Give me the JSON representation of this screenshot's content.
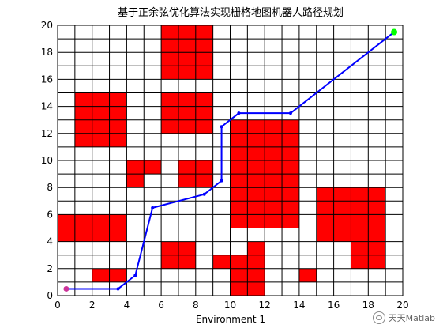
{
  "chart_data": {
    "type": "grid-map-path",
    "title": "基于正余弦优化算法实现栅格地图机器人路径规划",
    "xlabel": "Environment 1",
    "ylabel": "",
    "xlim": [
      0,
      20
    ],
    "ylim": [
      0,
      20
    ],
    "x_ticks": [
      0,
      2,
      4,
      6,
      8,
      10,
      12,
      14,
      16,
      18,
      20
    ],
    "y_ticks": [
      0,
      2,
      4,
      6,
      8,
      10,
      12,
      14,
      16,
      18,
      20
    ],
    "grid": true,
    "obstacle_color": "#ff0000",
    "grid_color": "#000000",
    "path_color": "#0000ff",
    "start_color": "#cc3399",
    "goal_color": "#00ff00",
    "obstacles": [
      [
        6,
        16
      ],
      [
        7,
        16
      ],
      [
        8,
        16
      ],
      [
        6,
        17
      ],
      [
        7,
        17
      ],
      [
        8,
        17
      ],
      [
        6,
        18
      ],
      [
        7,
        18
      ],
      [
        8,
        18
      ],
      [
        6,
        19
      ],
      [
        7,
        19
      ],
      [
        8,
        19
      ],
      [
        1,
        11
      ],
      [
        2,
        11
      ],
      [
        3,
        11
      ],
      [
        1,
        12
      ],
      [
        2,
        12
      ],
      [
        3,
        12
      ],
      [
        1,
        13
      ],
      [
        2,
        13
      ],
      [
        3,
        13
      ],
      [
        1,
        14
      ],
      [
        2,
        14
      ],
      [
        3,
        14
      ],
      [
        6,
        12
      ],
      [
        7,
        12
      ],
      [
        8,
        12
      ],
      [
        6,
        13
      ],
      [
        7,
        13
      ],
      [
        8,
        13
      ],
      [
        6,
        14
      ],
      [
        7,
        14
      ],
      [
        8,
        14
      ],
      [
        4,
        8
      ],
      [
        4,
        9
      ],
      [
        5,
        9
      ],
      [
        7,
        8
      ],
      [
        8,
        8
      ],
      [
        7,
        9
      ],
      [
        8,
        9
      ],
      [
        10,
        5
      ],
      [
        11,
        5
      ],
      [
        12,
        5
      ],
      [
        13,
        5
      ],
      [
        10,
        6
      ],
      [
        11,
        6
      ],
      [
        12,
        6
      ],
      [
        13,
        6
      ],
      [
        10,
        7
      ],
      [
        11,
        7
      ],
      [
        12,
        7
      ],
      [
        13,
        7
      ],
      [
        10,
        8
      ],
      [
        11,
        8
      ],
      [
        12,
        8
      ],
      [
        13,
        8
      ],
      [
        10,
        9
      ],
      [
        11,
        9
      ],
      [
        12,
        9
      ],
      [
        13,
        9
      ],
      [
        10,
        10
      ],
      [
        11,
        10
      ],
      [
        12,
        10
      ],
      [
        13,
        10
      ],
      [
        10,
        11
      ],
      [
        11,
        11
      ],
      [
        12,
        11
      ],
      [
        13,
        11
      ],
      [
        10,
        12
      ],
      [
        11,
        12
      ],
      [
        12,
        12
      ],
      [
        13,
        12
      ],
      [
        15,
        4
      ],
      [
        16,
        4
      ],
      [
        17,
        4
      ],
      [
        18,
        4
      ],
      [
        15,
        5
      ],
      [
        16,
        5
      ],
      [
        17,
        5
      ],
      [
        18,
        5
      ],
      [
        15,
        6
      ],
      [
        16,
        6
      ],
      [
        17,
        6
      ],
      [
        18,
        6
      ],
      [
        15,
        7
      ],
      [
        16,
        7
      ],
      [
        17,
        7
      ],
      [
        18,
        7
      ],
      [
        0,
        4
      ],
      [
        1,
        4
      ],
      [
        2,
        4
      ],
      [
        3,
        4
      ],
      [
        0,
        5
      ],
      [
        1,
        5
      ],
      [
        2,
        5
      ],
      [
        3,
        5
      ],
      [
        6,
        2
      ],
      [
        7,
        2
      ],
      [
        6,
        3
      ],
      [
        7,
        3
      ],
      [
        9,
        2
      ],
      [
        10,
        2
      ],
      [
        11,
        2
      ],
      [
        11,
        3
      ],
      [
        17,
        2
      ],
      [
        18,
        2
      ],
      [
        17,
        3
      ],
      [
        18,
        3
      ],
      [
        2,
        1
      ],
      [
        3,
        1
      ],
      [
        10,
        0
      ],
      [
        11,
        0
      ],
      [
        10,
        1
      ],
      [
        11,
        1
      ],
      [
        14,
        1
      ]
    ],
    "path": {
      "x": [
        0.5,
        3.5,
        4.5,
        5.5,
        8.5,
        9.5,
        9.5,
        10.5,
        13.5,
        19.5
      ],
      "y": [
        0.5,
        0.5,
        1.5,
        6.5,
        7.5,
        8.5,
        12.5,
        13.5,
        13.5,
        19.5
      ]
    },
    "start": [
      0.5,
      0.5
    ],
    "goal": [
      19.5,
      19.5
    ]
  },
  "watermark": "天天Matlab"
}
